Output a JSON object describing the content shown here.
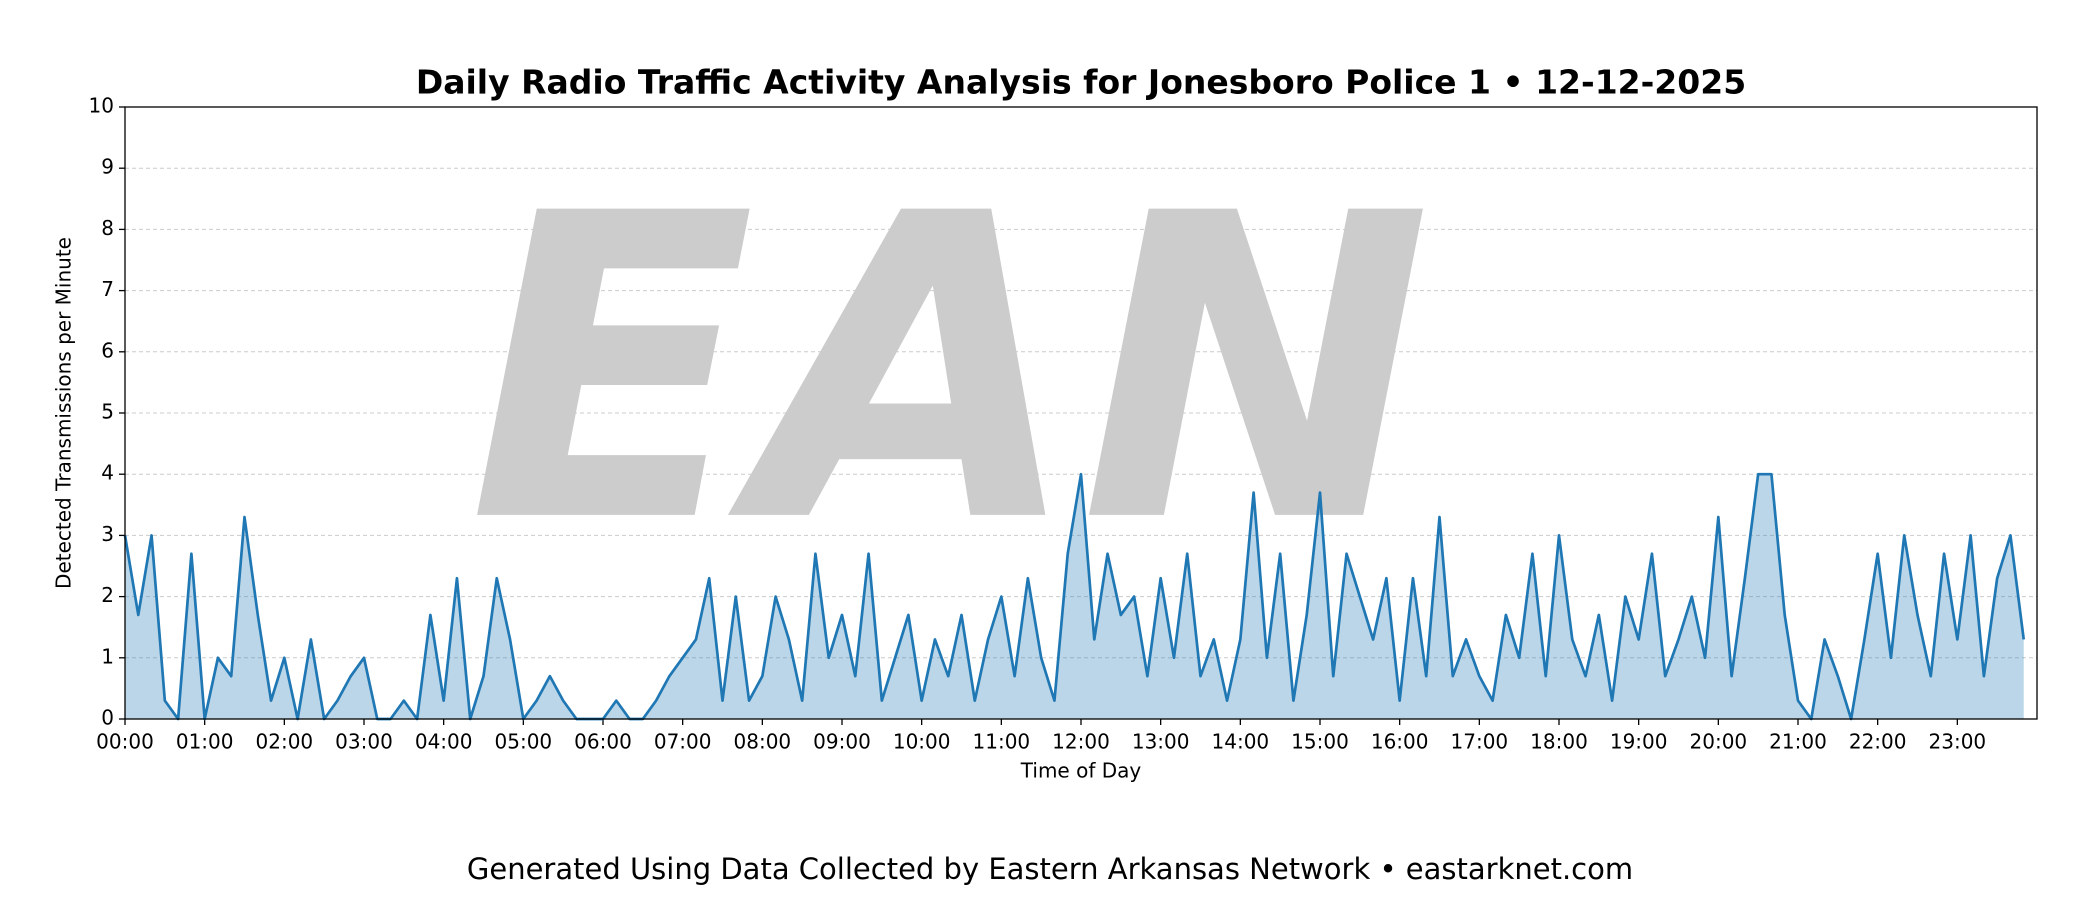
{
  "chart_data": {
    "type": "line",
    "title": "Daily Radio Traffic Activity Analysis for Jonesboro Police 1 • 12-12-2025",
    "xlabel": "Time of Day",
    "ylabel": "Detected Transmissions per Minute",
    "footer": "Generated Using Data Collected by Eastern Arkansas Network • eastarknet.com",
    "watermark": "EAN",
    "xlim": [
      0,
      1440
    ],
    "ylim": [
      0,
      10
    ],
    "yticks": [
      0,
      1,
      2,
      3,
      4,
      5,
      6,
      7,
      8,
      9,
      10
    ],
    "xticks": [
      {
        "value": 0,
        "label": "00:00"
      },
      {
        "value": 60,
        "label": "01:00"
      },
      {
        "value": 120,
        "label": "02:00"
      },
      {
        "value": 180,
        "label": "03:00"
      },
      {
        "value": 240,
        "label": "04:00"
      },
      {
        "value": 300,
        "label": "05:00"
      },
      {
        "value": 360,
        "label": "06:00"
      },
      {
        "value": 420,
        "label": "07:00"
      },
      {
        "value": 480,
        "label": "08:00"
      },
      {
        "value": 540,
        "label": "09:00"
      },
      {
        "value": 600,
        "label": "10:00"
      },
      {
        "value": 660,
        "label": "11:00"
      },
      {
        "value": 720,
        "label": "12:00"
      },
      {
        "value": 780,
        "label": "13:00"
      },
      {
        "value": 840,
        "label": "14:00"
      },
      {
        "value": 900,
        "label": "15:00"
      },
      {
        "value": 960,
        "label": "16:00"
      },
      {
        "value": 1020,
        "label": "17:00"
      },
      {
        "value": 1080,
        "label": "18:00"
      },
      {
        "value": 1140,
        "label": "19:00"
      },
      {
        "value": 1200,
        "label": "20:00"
      },
      {
        "value": 1260,
        "label": "21:00"
      },
      {
        "value": 1320,
        "label": "22:00"
      },
      {
        "value": 1380,
        "label": "23:00"
      }
    ],
    "grid": true,
    "color": "#1f77b4",
    "x": [
      0,
      10,
      20,
      30,
      40,
      50,
      60,
      70,
      80,
      90,
      100,
      110,
      120,
      130,
      140,
      150,
      160,
      170,
      180,
      190,
      200,
      210,
      220,
      230,
      240,
      250,
      260,
      270,
      280,
      290,
      300,
      310,
      320,
      330,
      340,
      350,
      360,
      370,
      380,
      390,
      400,
      410,
      420,
      430,
      440,
      450,
      460,
      470,
      480,
      490,
      500,
      510,
      520,
      530,
      540,
      550,
      560,
      570,
      580,
      590,
      600,
      610,
      620,
      630,
      640,
      650,
      660,
      670,
      680,
      690,
      700,
      710,
      720,
      730,
      740,
      750,
      760,
      770,
      780,
      790,
      800,
      810,
      820,
      830,
      840,
      850,
      860,
      870,
      880,
      890,
      900,
      910,
      920,
      930,
      940,
      950,
      960,
      970,
      980,
      990,
      1000,
      1010,
      1020,
      1030,
      1040,
      1050,
      1060,
      1070,
      1080,
      1090,
      1100,
      1110,
      1120,
      1130,
      1140,
      1150,
      1160,
      1170,
      1180,
      1190,
      1200,
      1210,
      1220,
      1230,
      1240,
      1250,
      1260,
      1270,
      1280,
      1290,
      1300,
      1310,
      1320,
      1330,
      1340,
      1350,
      1360,
      1370,
      1380,
      1390,
      1400,
      1410,
      1420,
      1430
    ],
    "values": [
      3,
      1.7,
      3,
      0.3,
      0,
      2.7,
      0,
      1,
      0.7,
      3.3,
      1.7,
      0.3,
      1,
      0,
      1.3,
      0,
      0.3,
      0.7,
      1,
      0,
      0,
      0.3,
      0,
      1.7,
      0.3,
      2.3,
      0,
      0.7,
      2.3,
      1.3,
      0,
      0.3,
      0.7,
      0.3,
      0,
      0,
      0,
      0.3,
      0,
      0,
      0.3,
      0.7,
      1,
      1.3,
      2.3,
      0.3,
      2,
      0.3,
      0.7,
      2,
      1.3,
      0.3,
      2.7,
      1,
      1.7,
      0.7,
      2.7,
      0.3,
      1,
      1.7,
      0.3,
      1.3,
      0.7,
      1.7,
      0.3,
      1.3,
      2,
      0.7,
      2.3,
      1,
      0.3,
      2.7,
      4,
      1.3,
      2.7,
      1.7,
      2,
      0.7,
      2.3,
      1,
      2.7,
      0.7,
      1.3,
      0.3,
      1.3,
      3.7,
      1,
      2.7,
      0.3,
      1.7,
      3.7,
      0.7,
      2.7,
      2,
      1.3,
      2.3,
      0.3,
      2.3,
      0.7,
      3.3,
      0.7,
      1.3,
      0.7,
      0.3,
      1.7,
      1,
      2.7,
      0.7,
      3,
      1.3,
      0.7,
      1.7,
      0.3,
      2,
      1.3,
      2.7,
      0.7,
      1.3,
      2,
      1,
      3.3,
      0.7,
      2.3,
      4,
      4,
      1.7,
      0.3,
      0,
      1.3,
      0.7,
      0,
      1.3,
      2.7,
      1,
      3,
      1.7,
      0.7,
      2.7,
      1.3,
      3,
      0.7,
      2.3,
      3,
      1.3
    ]
  }
}
